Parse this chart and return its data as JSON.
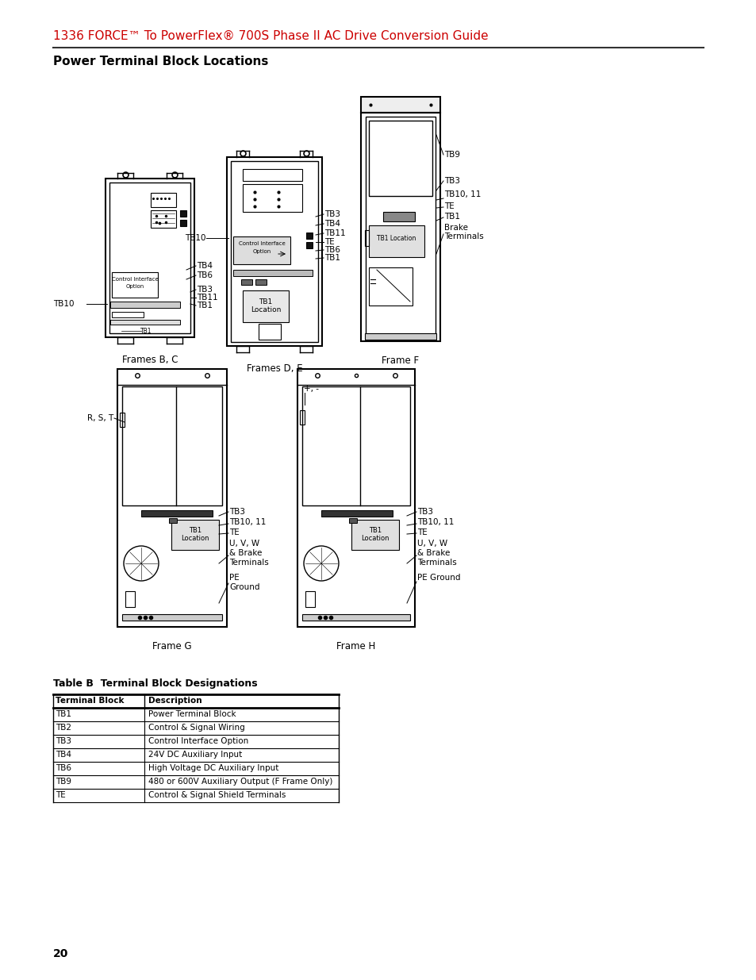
{
  "header_title": "1336 FORCE™ To PowerFlex® 700S Phase II AC Drive Conversion Guide",
  "section_title": "Power Terminal Block Locations",
  "table_title": "Table B  Terminal Block Designations",
  "table_headers": [
    "Terminal Block",
    "Description"
  ],
  "table_rows": [
    [
      "TB1",
      "Power Terminal Block"
    ],
    [
      "TB2",
      "Control & Signal Wiring"
    ],
    [
      "TB3",
      "Control Interface Option"
    ],
    [
      "TB4",
      "24V DC Auxiliary Input"
    ],
    [
      "TB6",
      "High Voltage DC Auxiliary Input"
    ],
    [
      "TB9",
      "480 or 600V Auxiliary Output (F Frame Only)"
    ],
    [
      "TE",
      "Control & Signal Shield Terminals"
    ]
  ],
  "page_number": "20",
  "bg_color": "#ffffff",
  "header_color": "#cc0000",
  "line_color": "#000000",
  "text_color": "#000000"
}
